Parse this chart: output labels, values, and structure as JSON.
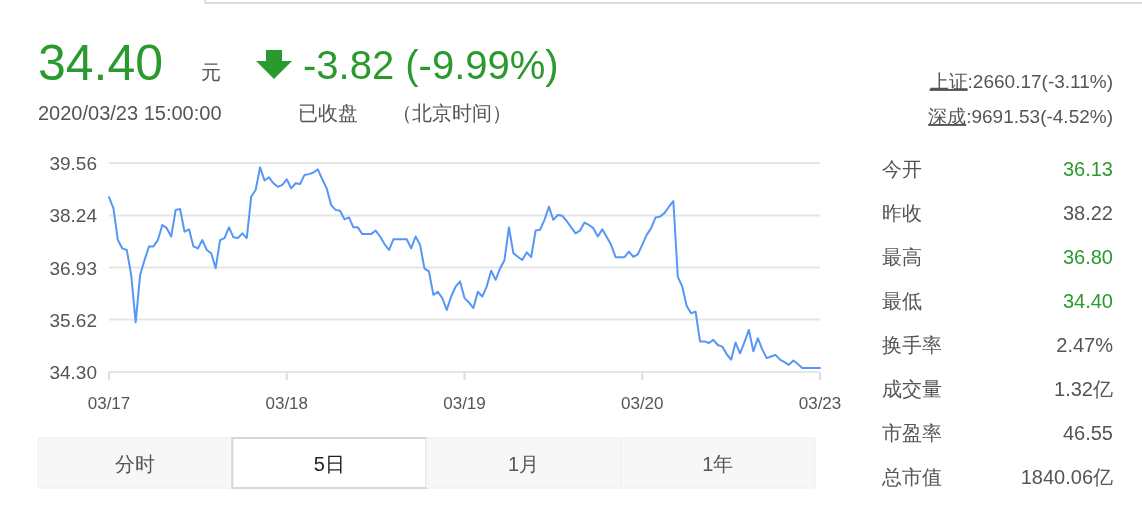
{
  "chart_data": [
    {
      "type": "line",
      "ylim": [
        34.3,
        39.56
      ],
      "grid": "y",
      "marker": "none",
      "line_style": "solid",
      "categories": [
        "03/17",
        null,
        null,
        null,
        null,
        null,
        null,
        null,
        null,
        null,
        null,
        null,
        null,
        null,
        null,
        null,
        null,
        null,
        null,
        null,
        null,
        null,
        null,
        null,
        null,
        null,
        null,
        null,
        null,
        null,
        null,
        null,
        null,
        null,
        null,
        null,
        null,
        null,
        null,
        null,
        "03/18",
        null,
        null,
        null,
        null,
        null,
        null,
        null,
        null,
        null,
        null,
        null,
        null,
        null,
        null,
        null,
        null,
        null,
        null,
        null,
        null,
        null,
        null,
        null,
        null,
        null,
        null,
        null,
        null,
        null,
        null,
        null,
        null,
        null,
        null,
        null,
        null,
        null,
        null,
        null,
        "03/19",
        null,
        null,
        null,
        null,
        null,
        null,
        null,
        null,
        null,
        null,
        null,
        null,
        null,
        null,
        null,
        null,
        null,
        null,
        null,
        null,
        null,
        null,
        null,
        null,
        null,
        null,
        null,
        null,
        null,
        null,
        null,
        null,
        null,
        null,
        null,
        null,
        null,
        null,
        null,
        "03/20",
        null,
        null,
        null,
        null,
        null,
        null,
        null,
        null,
        null,
        null,
        null,
        null,
        null,
        null,
        null,
        null,
        null,
        null,
        null,
        null,
        null,
        null,
        null,
        null,
        null,
        null,
        null,
        null,
        null,
        null,
        null,
        null,
        null,
        null,
        null,
        null,
        null,
        null,
        null,
        "03/23"
      ],
      "yticks": [
        {
          "value": 34.3,
          "label": "34.30"
        },
        35.62,
        36.93,
        38.24,
        39.56
      ],
      "annotations": [
        "34.40",
        "元",
        "-3.82 (-9.99%)",
        "2020/03/23 15:00:00",
        "已收盘",
        "（北京时间）",
        "分时",
        "5日",
        "1月",
        "1年"
      ],
      "series": [
        {
          "color": "#5596f7",
          "values": [
            38.7,
            38.42,
            37.62,
            37.41,
            37.37,
            36.74,
            35.55,
            36.74,
            37.12,
            37.46,
            37.46,
            37.62,
            38.0,
            37.92,
            37.71,
            38.38,
            38.4,
            37.83,
            37.89,
            37.46,
            37.41,
            37.62,
            37.37,
            37.29,
            36.91,
            37.62,
            37.67,
            37.94,
            37.69,
            37.67,
            37.79,
            37.67,
            38.71,
            38.88,
            39.45,
            39.12,
            39.2,
            39.05,
            38.96,
            39.01,
            39.15,
            38.92,
            39.05,
            39.03,
            39.26,
            39.28,
            39.32,
            39.4,
            39.15,
            38.92,
            38.5,
            38.38,
            38.36,
            38.14,
            38.19,
            37.94,
            37.94,
            37.77,
            37.77,
            37.77,
            37.86,
            37.71,
            37.52,
            37.37,
            37.64,
            37.64,
            37.64,
            37.64,
            37.41,
            37.71,
            37.5,
            36.9,
            36.83,
            36.24,
            36.32,
            36.16,
            35.86,
            36.2,
            36.45,
            36.58,
            36.16,
            36.05,
            35.91,
            36.32,
            36.2,
            36.45,
            36.85,
            36.62,
            36.9,
            37.12,
            37.94,
            37.29,
            37.2,
            37.12,
            37.31,
            37.19,
            37.86,
            37.88,
            38.13,
            38.46,
            38.13,
            38.25,
            38.23,
            38.1,
            37.94,
            37.79,
            37.86,
            38.06,
            38.0,
            37.92,
            37.71,
            37.89,
            37.7,
            37.5,
            37.19,
            37.19,
            37.19,
            37.33,
            37.2,
            37.26,
            37.5,
            37.75,
            37.92,
            38.19,
            38.21,
            38.3,
            38.46,
            38.6,
            36.7,
            36.45,
            35.96,
            35.78,
            35.82,
            35.07,
            35.07,
            35.03,
            35.11,
            34.98,
            34.94,
            34.75,
            34.61,
            35.04,
            34.77,
            35.05,
            35.36,
            34.82,
            35.15,
            34.87,
            34.65,
            34.69,
            34.73,
            34.61,
            34.55,
            34.48,
            34.59,
            34.5,
            34.4,
            34.4,
            34.4,
            34.4,
            34.4
          ]
        }
      ]
    },
    {
      "type": "other",
      "annotations": [
        "上证:2660.17(-3.11%)",
        "深成:9691.53(-4.52%)",
        "今开",
        "36.13",
        "昨收",
        "38.22",
        "最高",
        "36.80",
        "最低",
        "34.40",
        "换手率",
        "2.47%",
        "成交量",
        "1.32亿",
        "市盈率",
        "46.55",
        "总市值",
        "1840.06亿"
      ],
      "colors": [
        "#2a9a2e",
        "#555555",
        "#2a9a2e",
        "#2a9a2e",
        "#555555",
        "#555555",
        "#555555",
        "#555555"
      ]
    }
  ]
}
